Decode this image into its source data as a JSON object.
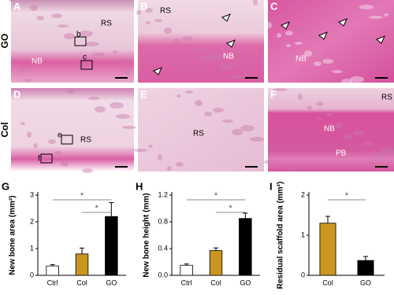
{
  "images": [
    {
      "label": "A",
      "annotations": [
        "RS",
        "NB",
        "b",
        "c"
      ]
    },
    {
      "label": "B",
      "annotations": [
        "RS",
        "NB"
      ]
    },
    {
      "label": "C",
      "annotations": [
        "NB"
      ]
    },
    {
      "label": "D",
      "annotations": [
        "RS",
        "e",
        "f"
      ]
    },
    {
      "label": "E",
      "annotations": [
        "RS"
      ]
    },
    {
      "label": "F",
      "annotations": [
        "RS",
        "NB",
        "PB"
      ]
    }
  ],
  "row_labels": [
    "GO",
    "Col"
  ],
  "chart_data": [
    {
      "type": "bar",
      "panel_label": "G",
      "y_label": "New bone area (mm²)",
      "categories": [
        "Ctrl",
        "Col",
        "GO"
      ],
      "values": [
        0.35,
        0.8,
        2.2
      ],
      "errors": [
        0.05,
        0.22,
        0.52
      ],
      "colors": [
        "#ffffff",
        "#c9961f",
        "#000000"
      ],
      "ylim": [
        0,
        3
      ],
      "yticks": [
        0,
        1,
        2,
        3
      ],
      "significance": [
        {
          "from": 0,
          "to": 2,
          "label": "*"
        },
        {
          "from": 1,
          "to": 2,
          "label": "*"
        }
      ]
    },
    {
      "type": "bar",
      "panel_label": "H",
      "y_label": "New bone height (mm)",
      "categories": [
        "Ctrl",
        "Col",
        "GO"
      ],
      "values": [
        0.15,
        0.37,
        0.85
      ],
      "errors": [
        0.02,
        0.04,
        0.08
      ],
      "colors": [
        "#ffffff",
        "#c9961f",
        "#000000"
      ],
      "ylim": [
        0,
        1.2
      ],
      "yticks": [
        {
          "value": 0,
          "label": "0.0"
        },
        0.4,
        0.8,
        1.2
      ],
      "significance": [
        {
          "from": 0,
          "to": 2,
          "label": "*"
        },
        {
          "from": 1,
          "to": 2,
          "label": "*"
        }
      ]
    },
    {
      "type": "bar",
      "panel_label": "I",
      "y_label": "Residual scaffold area (mm²)",
      "categories": [
        "Col",
        "GO"
      ],
      "values": [
        1.3,
        0.37
      ],
      "errors": [
        0.17,
        0.1
      ],
      "colors": [
        "#c9961f",
        "#000000"
      ],
      "ylim": [
        0,
        2
      ],
      "yticks": [
        0,
        1,
        2
      ],
      "significance": [
        {
          "from": 0,
          "to": 1,
          "label": "*"
        }
      ]
    }
  ]
}
